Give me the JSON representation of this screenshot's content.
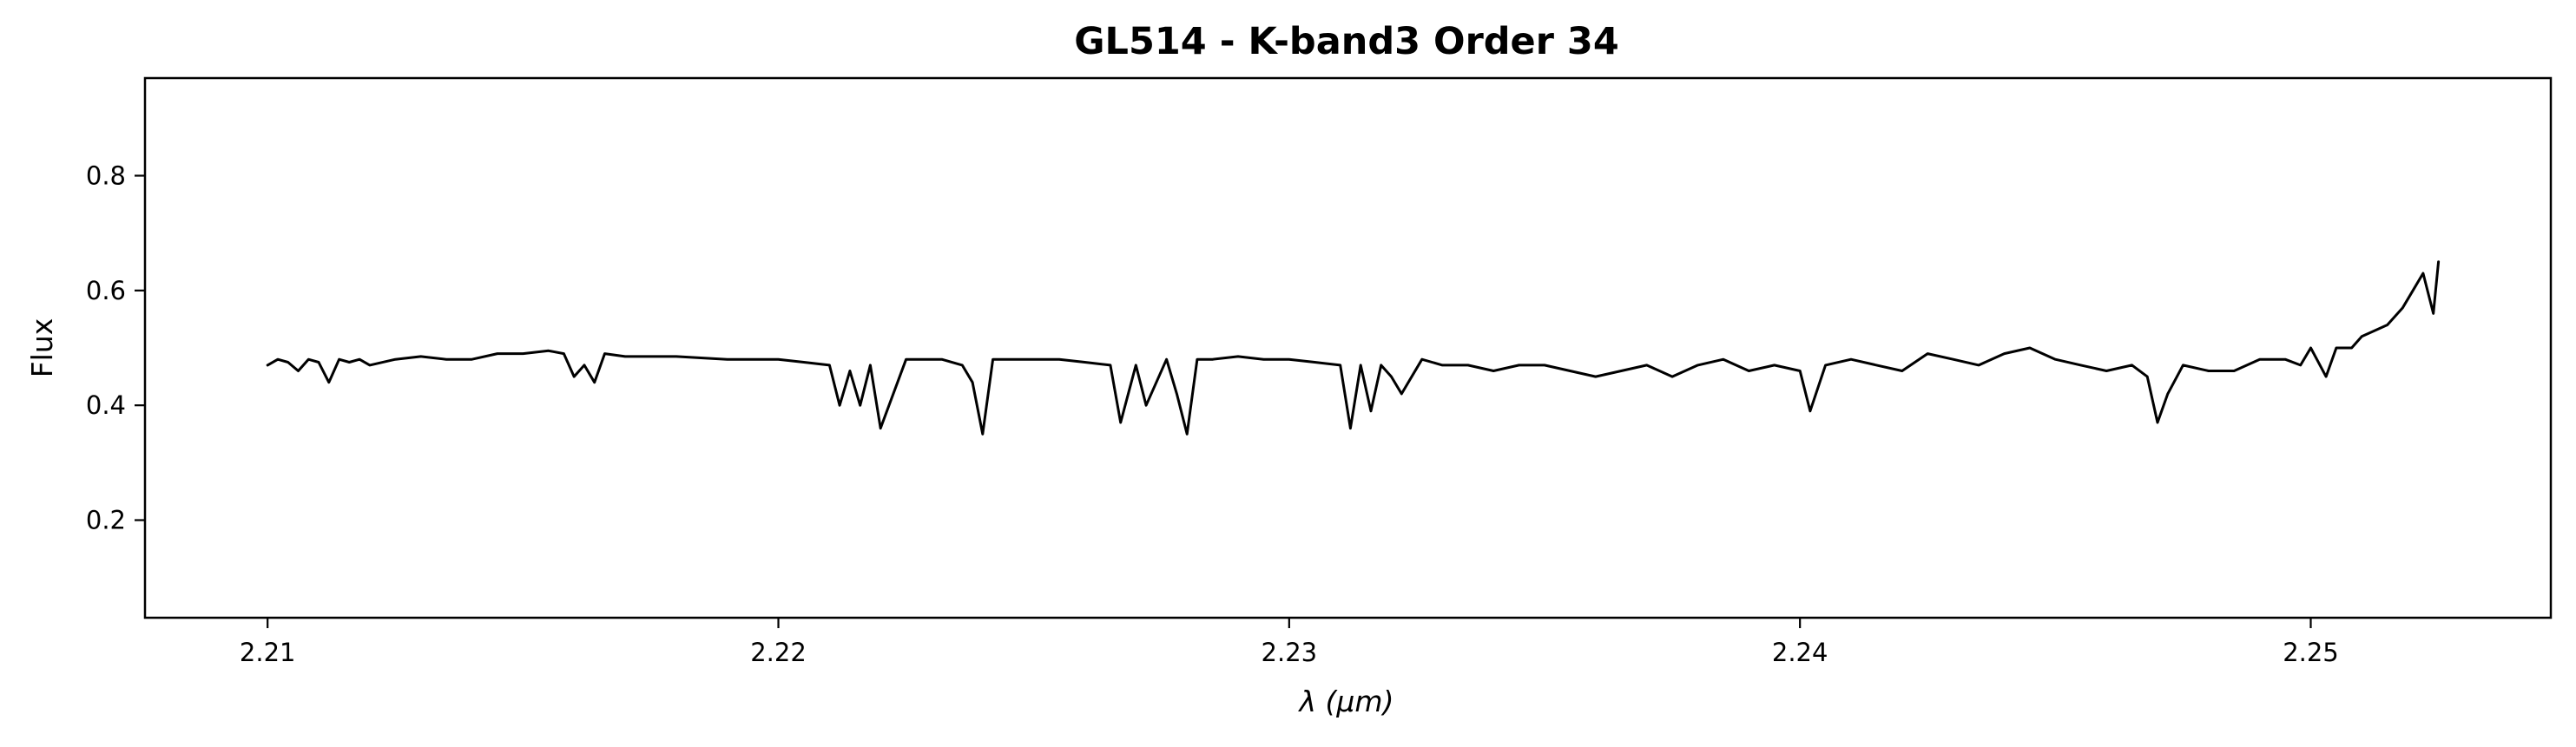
{
  "chart_data": {
    "type": "line",
    "title": "GL514 - K-band3 Order 34",
    "xlabel": "λ (μm)",
    "ylabel": "Flux",
    "xlim": [
      2.2076,
      2.2547
    ],
    "ylim": [
      0.03,
      0.97
    ],
    "xticks": [
      "2.21",
      "2.22",
      "2.23",
      "2.24",
      "2.25"
    ],
    "yticks": [
      "0.2",
      "0.4",
      "0.6",
      "0.8"
    ],
    "grid": false,
    "legend": "none",
    "colors": {
      "line": "#000000",
      "background": "#ffffff"
    },
    "series": [
      {
        "x": [
          2.21,
          2.2102,
          2.2104,
          2.2106,
          2.2108,
          2.211,
          2.2112,
          2.2114,
          2.2116,
          2.2118,
          2.212,
          2.2125,
          2.213,
          2.2135,
          2.214,
          2.2145,
          2.215,
          2.2155,
          2.2158,
          2.216,
          2.2162,
          2.2164,
          2.2166,
          2.217,
          2.218,
          2.219,
          2.22,
          2.2205,
          2.221,
          2.2212,
          2.2214,
          2.2216,
          2.2218,
          2.222,
          2.2225,
          2.2232,
          2.2236,
          2.2238,
          2.224,
          2.2242,
          2.2245,
          2.225,
          2.2255,
          2.226,
          2.2265,
          2.2267,
          2.227,
          2.2272,
          2.2276,
          2.2278,
          2.228,
          2.2282,
          2.2285,
          2.229,
          2.2295,
          2.23,
          2.2305,
          2.231,
          2.2312,
          2.2314,
          2.2316,
          2.2318,
          2.232,
          2.2322,
          2.2326,
          2.233,
          2.2335,
          2.234,
          2.2345,
          2.235,
          2.2355,
          2.236,
          2.2365,
          2.237,
          2.2375,
          2.238,
          2.2385,
          2.239,
          2.2395,
          2.24,
          2.2402,
          2.2405,
          2.241,
          2.2415,
          2.242,
          2.2425,
          2.243,
          2.2435,
          2.244,
          2.2445,
          2.245,
          2.2455,
          2.246,
          2.2465,
          2.2468,
          2.247,
          2.2472,
          2.2475,
          2.248,
          2.2485,
          2.249,
          2.2495,
          2.2498,
          2.25,
          2.2503,
          2.2505,
          2.2508,
          2.251,
          2.2515,
          2.2518,
          2.252,
          2.2522,
          2.2524,
          2.2525
        ],
        "y": [
          0.47,
          0.48,
          0.475,
          0.46,
          0.48,
          0.475,
          0.44,
          0.48,
          0.475,
          0.48,
          0.47,
          0.48,
          0.485,
          0.48,
          0.48,
          0.49,
          0.49,
          0.495,
          0.49,
          0.45,
          0.47,
          0.44,
          0.49,
          0.485,
          0.485,
          0.48,
          0.48,
          0.475,
          0.47,
          0.4,
          0.46,
          0.4,
          0.47,
          0.36,
          0.48,
          0.48,
          0.47,
          0.44,
          0.35,
          0.48,
          0.48,
          0.48,
          0.48,
          0.475,
          0.47,
          0.37,
          0.47,
          0.4,
          0.48,
          0.42,
          0.35,
          0.48,
          0.48,
          0.485,
          0.48,
          0.48,
          0.475,
          0.47,
          0.36,
          0.47,
          0.39,
          0.47,
          0.45,
          0.42,
          0.48,
          0.47,
          0.47,
          0.46,
          0.47,
          0.47,
          0.46,
          0.45,
          0.46,
          0.47,
          0.45,
          0.47,
          0.48,
          0.46,
          0.47,
          0.46,
          0.39,
          0.47,
          0.48,
          0.47,
          0.46,
          0.49,
          0.48,
          0.47,
          0.49,
          0.5,
          0.48,
          0.47,
          0.46,
          0.47,
          0.45,
          0.37,
          0.42,
          0.47,
          0.46,
          0.46,
          0.48,
          0.48,
          0.47,
          0.5,
          0.45,
          0.5,
          0.5,
          0.52,
          0.54,
          0.57,
          0.6,
          0.63,
          0.56,
          0.65
        ]
      }
    ]
  }
}
